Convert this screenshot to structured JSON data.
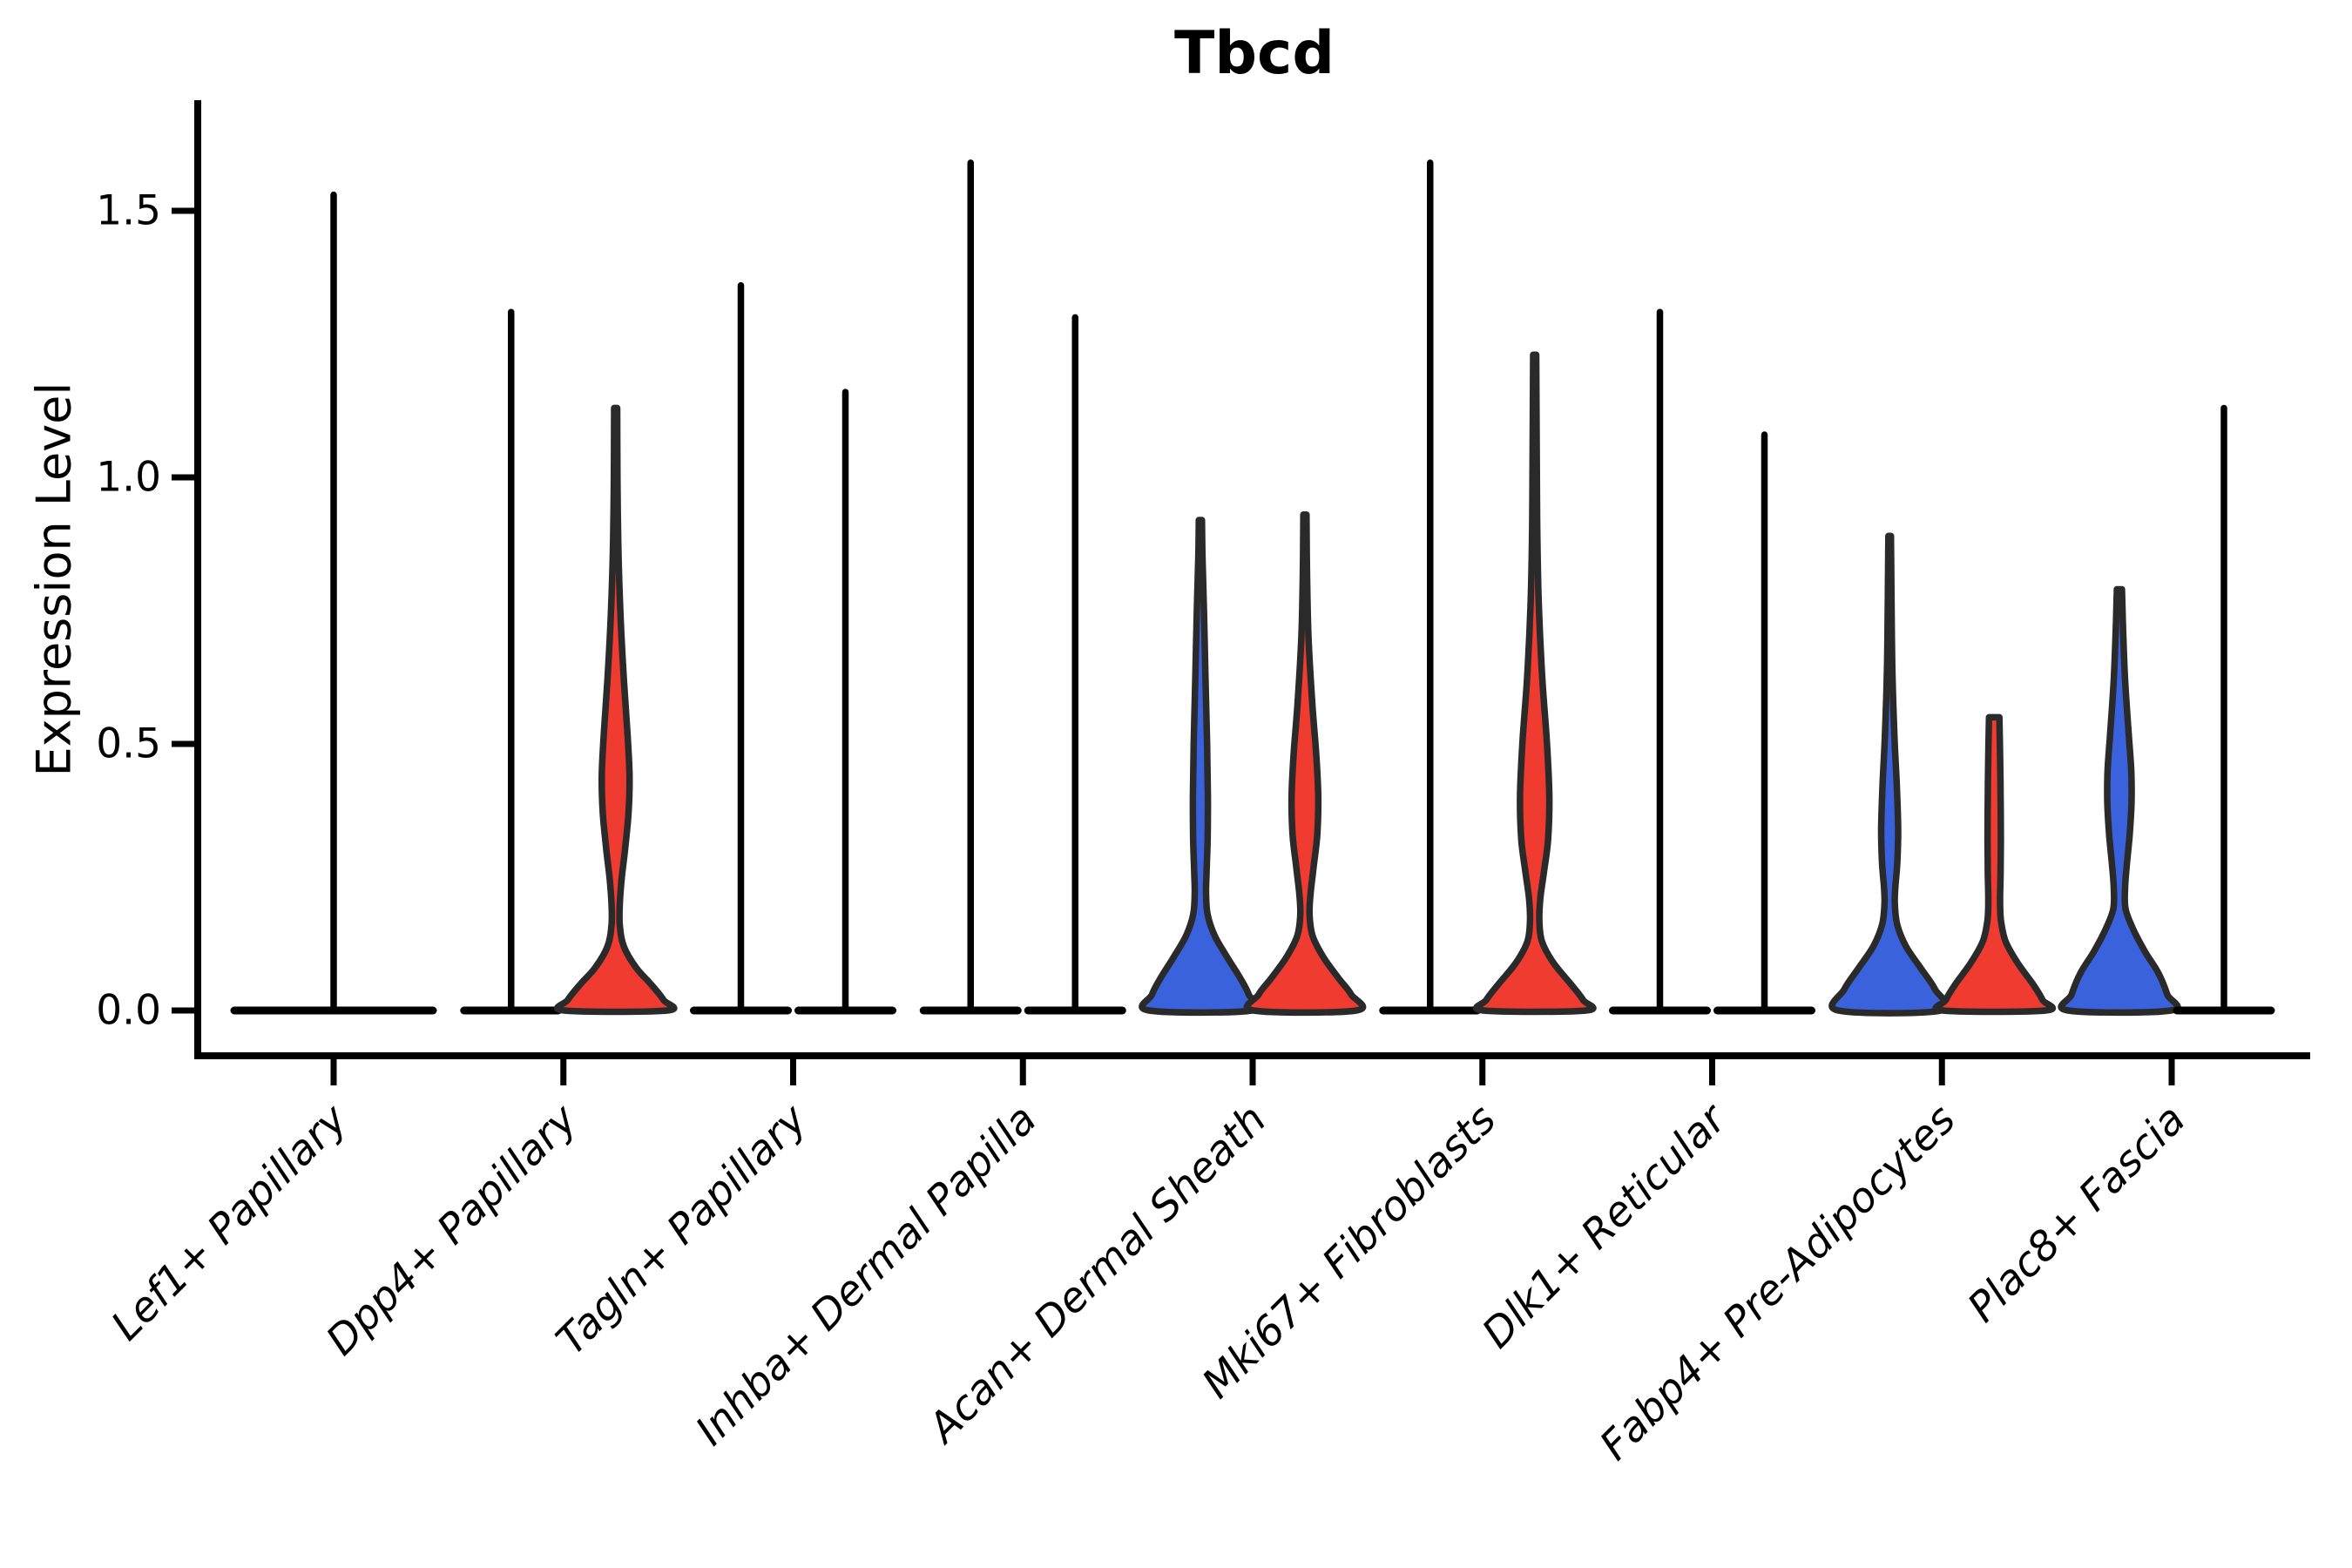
{
  "colors": {
    "blue": "#3A62DC",
    "red": "#F03B30",
    "outline": "#2A2A2A",
    "axis": "#000000"
  },
  "chart_data": {
    "type": "violin",
    "title": "Tbcd",
    "ylabel": "Expression Level",
    "xlabel": "",
    "ylim": [
      -0.08,
      1.7
    ],
    "grid": false,
    "legend": "none",
    "ytick_labels": [
      "0.0",
      "0.5",
      "1.0",
      "1.5"
    ],
    "ytick_values": [
      0.0,
      0.5,
      1.0,
      1.5
    ],
    "categories": [
      "Lef1+ Papillary",
      "Dpp4+ Papillary",
      "Tagln+ Papillary",
      "Inhba+ Dermal Papilla",
      "Acan+ Dermal Sheath",
      "Mki67+ Fibroblasts",
      "Dlk1+ Reticular",
      "Fabp4+ Pre-Adipocytes",
      "Plac8+ Fascia"
    ],
    "violins": [
      {
        "category": 0,
        "pos": "center",
        "kind": "spike",
        "color": "none",
        "max": 1.53
      },
      {
        "category": 1,
        "pos": "left",
        "kind": "spike",
        "color": "blue",
        "max": 1.31
      },
      {
        "category": 1,
        "pos": "right",
        "kind": "density",
        "color": "red",
        "max": 1.13,
        "profile": [
          [
            1.13,
            0.03
          ],
          [
            1.0,
            0.035
          ],
          [
            0.88,
            0.05
          ],
          [
            0.75,
            0.09
          ],
          [
            0.62,
            0.16
          ],
          [
            0.52,
            0.23
          ],
          [
            0.44,
            0.27
          ],
          [
            0.37,
            0.25
          ],
          [
            0.3,
            0.18
          ],
          [
            0.25,
            0.12
          ],
          [
            0.2,
            0.08
          ],
          [
            0.16,
            0.08
          ],
          [
            0.12,
            0.16
          ],
          [
            0.08,
            0.4
          ],
          [
            0.05,
            0.68
          ],
          [
            0.02,
            0.93
          ],
          [
            0.0,
            1.0
          ]
        ]
      },
      {
        "category": 2,
        "pos": "left",
        "kind": "spike",
        "color": "blue",
        "max": 1.36
      },
      {
        "category": 2,
        "pos": "right",
        "kind": "spike",
        "color": "red",
        "max": 1.16
      },
      {
        "category": 3,
        "pos": "left",
        "kind": "spike",
        "color": "blue",
        "max": 1.59
      },
      {
        "category": 3,
        "pos": "right",
        "kind": "spike",
        "color": "red",
        "max": 1.3
      },
      {
        "category": 4,
        "pos": "left",
        "kind": "density",
        "color": "blue",
        "max": 0.92,
        "profile": [
          [
            0.92,
            0.03
          ],
          [
            0.85,
            0.04
          ],
          [
            0.75,
            0.07
          ],
          [
            0.62,
            0.1
          ],
          [
            0.5,
            0.13
          ],
          [
            0.4,
            0.145
          ],
          [
            0.32,
            0.14
          ],
          [
            0.26,
            0.12
          ],
          [
            0.22,
            0.11
          ],
          [
            0.18,
            0.14
          ],
          [
            0.14,
            0.28
          ],
          [
            0.1,
            0.52
          ],
          [
            0.06,
            0.78
          ],
          [
            0.03,
            0.94
          ],
          [
            0.0,
            1.0
          ]
        ]
      },
      {
        "category": 4,
        "pos": "right",
        "kind": "density",
        "color": "red",
        "max": 0.93,
        "profile": [
          [
            0.93,
            0.03
          ],
          [
            0.82,
            0.04
          ],
          [
            0.7,
            0.07
          ],
          [
            0.58,
            0.14
          ],
          [
            0.48,
            0.22
          ],
          [
            0.4,
            0.26
          ],
          [
            0.33,
            0.24
          ],
          [
            0.27,
            0.17
          ],
          [
            0.22,
            0.11
          ],
          [
            0.18,
            0.09
          ],
          [
            0.14,
            0.15
          ],
          [
            0.1,
            0.36
          ],
          [
            0.06,
            0.66
          ],
          [
            0.03,
            0.9
          ],
          [
            0.0,
            1.0
          ]
        ]
      },
      {
        "category": 5,
        "pos": "left",
        "kind": "spike",
        "color": "blue",
        "max": 1.59
      },
      {
        "category": 5,
        "pos": "right",
        "kind": "density",
        "color": "red",
        "max": 1.23,
        "profile": [
          [
            1.23,
            0.03
          ],
          [
            1.05,
            0.04
          ],
          [
            0.9,
            0.05
          ],
          [
            0.76,
            0.08
          ],
          [
            0.62,
            0.15
          ],
          [
            0.5,
            0.24
          ],
          [
            0.4,
            0.285
          ],
          [
            0.32,
            0.26
          ],
          [
            0.26,
            0.18
          ],
          [
            0.21,
            0.11
          ],
          [
            0.17,
            0.09
          ],
          [
            0.13,
            0.14
          ],
          [
            0.09,
            0.36
          ],
          [
            0.05,
            0.7
          ],
          [
            0.02,
            0.94
          ],
          [
            0.0,
            1.0
          ]
        ]
      },
      {
        "category": 6,
        "pos": "left",
        "kind": "spike",
        "color": "blue",
        "max": 1.31
      },
      {
        "category": 6,
        "pos": "right",
        "kind": "spike",
        "color": "red",
        "max": 1.08
      },
      {
        "category": 7,
        "pos": "left",
        "kind": "density",
        "color": "blue",
        "max": 0.89,
        "profile": [
          [
            0.89,
            0.025
          ],
          [
            0.78,
            0.035
          ],
          [
            0.65,
            0.05
          ],
          [
            0.52,
            0.09
          ],
          [
            0.42,
            0.14
          ],
          [
            0.34,
            0.165
          ],
          [
            0.28,
            0.15
          ],
          [
            0.23,
            0.11
          ],
          [
            0.2,
            0.1
          ],
          [
            0.16,
            0.15
          ],
          [
            0.12,
            0.32
          ],
          [
            0.08,
            0.6
          ],
          [
            0.04,
            0.88
          ],
          [
            0.0,
            1.0
          ]
        ]
      },
      {
        "category": 7,
        "pos": "right",
        "kind": "density",
        "color": "red",
        "max": 0.55,
        "profile": [
          [
            0.55,
            0.1
          ],
          [
            0.48,
            0.115
          ],
          [
            0.4,
            0.125
          ],
          [
            0.32,
            0.13
          ],
          [
            0.26,
            0.125
          ],
          [
            0.21,
            0.115
          ],
          [
            0.17,
            0.13
          ],
          [
            0.13,
            0.22
          ],
          [
            0.09,
            0.45
          ],
          [
            0.05,
            0.75
          ],
          [
            0.02,
            0.94
          ],
          [
            0.0,
            1.0
          ]
        ]
      },
      {
        "category": 8,
        "pos": "left",
        "kind": "density",
        "color": "blue",
        "max": 0.79,
        "profile": [
          [
            0.79,
            0.05
          ],
          [
            0.72,
            0.07
          ],
          [
            0.62,
            0.11
          ],
          [
            0.52,
            0.18
          ],
          [
            0.45,
            0.23
          ],
          [
            0.39,
            0.235
          ],
          [
            0.33,
            0.2
          ],
          [
            0.27,
            0.14
          ],
          [
            0.23,
            0.11
          ],
          [
            0.19,
            0.12
          ],
          [
            0.15,
            0.28
          ],
          [
            0.11,
            0.5
          ],
          [
            0.07,
            0.76
          ],
          [
            0.03,
            0.93
          ],
          [
            0.0,
            1.0
          ]
        ]
      },
      {
        "category": 8,
        "pos": "right",
        "kind": "spike",
        "color": "red",
        "max": 1.13
      }
    ]
  }
}
